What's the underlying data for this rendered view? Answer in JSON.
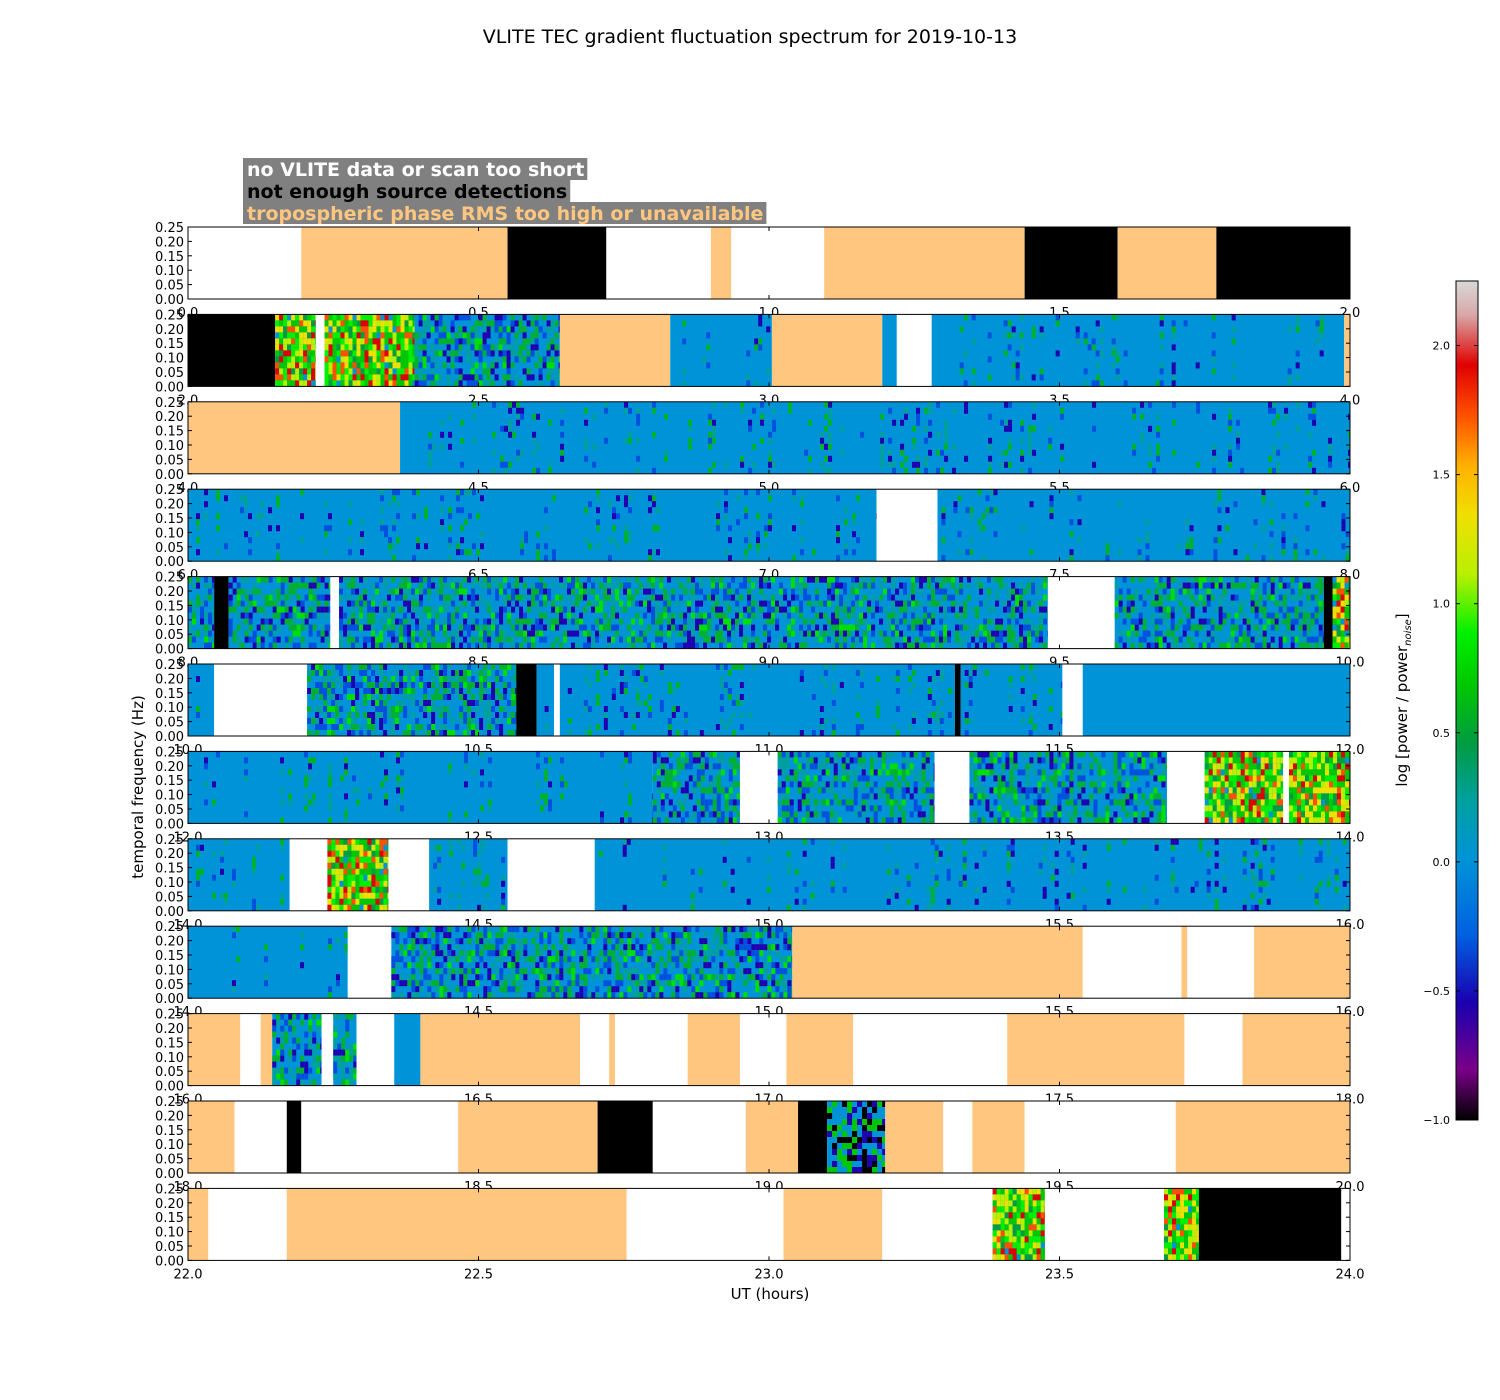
{
  "chart_data": {
    "type": "heatmap",
    "title": "VLITE TEC gradient fluctuation spectrum for 2019-10-13",
    "xlabel": "UT (hours)",
    "ylabel": "temporal frequency (Hz)",
    "colorbar_label": "log [power / power",
    "colorbar_label_sub": "noise",
    "colorbar_label_end": "]",
    "colorbar_range": [
      -1.0,
      2.25
    ],
    "colorbar_ticks": [
      "2.0",
      "1.5",
      "1.0",
      "0.5",
      "0.0",
      "−0.5",
      "−1.0"
    ],
    "colorbar_tick_values": [
      2.0,
      1.5,
      1.0,
      0.5,
      0.0,
      -0.5,
      -1.0
    ],
    "y_ticks": [
      "0.00",
      "0.05",
      "0.10",
      "0.15",
      "0.20",
      "0.25"
    ],
    "ylim": [
      0,
      0.25
    ],
    "legend": [
      {
        "label": "no VLITE data or scan too short",
        "text_color": "#ffffff",
        "status": "no_data"
      },
      {
        "label": "not enough source detections",
        "text_color": "#000000",
        "status": "no_detections"
      },
      {
        "label": "tropospheric phase RMS too high or unavailable",
        "text_color": "#ffc680",
        "status": "tropo"
      }
    ],
    "status_colors": {
      "no_data": "#ffffff",
      "no_detections": "#000000",
      "tropo": "#ffc680",
      "legend_box": "#808080",
      "noise_level": "#0093d8"
    },
    "panels": [
      {
        "x_ticks": [
          "0.0",
          "0.5",
          "1.0",
          "1.5",
          "2.0"
        ],
        "xlim": [
          0,
          2
        ],
        "segments": [
          [
            0,
            0.195,
            "no_data"
          ],
          [
            0.195,
            0.55,
            "tropo"
          ],
          [
            0.55,
            0.72,
            "no_detections"
          ],
          [
            0.72,
            0.9,
            "no_data"
          ],
          [
            0.9,
            0.935,
            "tropo"
          ],
          [
            0.935,
            1.095,
            "no_data"
          ],
          [
            1.095,
            1.44,
            "tropo"
          ],
          [
            1.44,
            1.6,
            "no_detections"
          ],
          [
            1.6,
            1.77,
            "tropo"
          ],
          [
            1.77,
            2.0,
            "no_detections"
          ]
        ]
      },
      {
        "x_ticks": [
          "2.0",
          "2.5",
          "3.0",
          "3.5",
          "4.0"
        ],
        "xlim": [
          2,
          4
        ],
        "segments": [
          [
            2.0,
            2.15,
            "no_detections"
          ],
          [
            2.15,
            2.22,
            "strong"
          ],
          [
            2.22,
            2.235,
            "no_data"
          ],
          [
            2.235,
            2.39,
            "strong"
          ],
          [
            2.39,
            2.64,
            "moderate"
          ],
          [
            2.64,
            2.83,
            "tropo"
          ],
          [
            2.83,
            3.005,
            "sparse"
          ],
          [
            3.005,
            3.195,
            "tropo"
          ],
          [
            3.195,
            3.22,
            "quiet"
          ],
          [
            3.22,
            3.28,
            "no_data"
          ],
          [
            3.28,
            3.99,
            "sparse"
          ],
          [
            3.99,
            4.0,
            "tropo"
          ]
        ]
      },
      {
        "x_ticks": [
          "4.0",
          "4.5",
          "5.0",
          "5.5",
          "6.0"
        ],
        "xlim": [
          4,
          6
        ],
        "segments": [
          [
            4.0,
            4.365,
            "tropo"
          ],
          [
            4.365,
            6.0,
            "sparse"
          ]
        ]
      },
      {
        "x_ticks": [
          "6.0",
          "6.5",
          "7.0",
          "7.5",
          "8.0"
        ],
        "xlim": [
          6,
          8
        ],
        "segments": [
          [
            6.0,
            7.185,
            "sparse"
          ],
          [
            7.185,
            7.29,
            "no_data"
          ],
          [
            7.29,
            8.0,
            "sparse"
          ]
        ]
      },
      {
        "x_ticks": [
          "8.0",
          "8.5",
          "9.0",
          "9.5",
          "10.0"
        ],
        "xlim": [
          8,
          10
        ],
        "segments": [
          [
            8.0,
            8.045,
            "moderate"
          ],
          [
            8.045,
            8.07,
            "no_detections"
          ],
          [
            8.07,
            8.245,
            "moderate"
          ],
          [
            8.245,
            8.26,
            "no_data"
          ],
          [
            8.26,
            9.48,
            "moderate"
          ],
          [
            9.48,
            9.595,
            "no_data"
          ],
          [
            9.595,
            9.955,
            "moderate"
          ],
          [
            9.955,
            9.97,
            "no_detections"
          ],
          [
            9.97,
            10.0,
            "strong"
          ]
        ]
      },
      {
        "x_ticks": [
          "10.0",
          "10.5",
          "11.0",
          "11.5",
          "12.0"
        ],
        "xlim": [
          10,
          12
        ],
        "segments": [
          [
            10.0,
            10.045,
            "sparse"
          ],
          [
            10.045,
            10.205,
            "no_data"
          ],
          [
            10.205,
            10.565,
            "moderate"
          ],
          [
            10.565,
            10.6,
            "no_detections"
          ],
          [
            10.6,
            10.63,
            "sparse"
          ],
          [
            10.63,
            10.64,
            "no_data"
          ],
          [
            10.64,
            11.32,
            "sparse"
          ],
          [
            11.32,
            11.33,
            "no_detections"
          ],
          [
            11.33,
            11.505,
            "sparse"
          ],
          [
            11.505,
            11.54,
            "no_data"
          ],
          [
            11.54,
            12.0,
            "quiet"
          ]
        ]
      },
      {
        "x_ticks": [
          "12.0",
          "12.5",
          "13.0",
          "13.5",
          "14.0"
        ],
        "xlim": [
          12,
          14
        ],
        "segments": [
          [
            12.0,
            12.8,
            "sparse"
          ],
          [
            12.8,
            12.95,
            "moderate"
          ],
          [
            12.95,
            13.015,
            "no_data"
          ],
          [
            13.015,
            13.285,
            "moderate"
          ],
          [
            13.285,
            13.345,
            "no_data"
          ],
          [
            13.345,
            13.685,
            "moderate"
          ],
          [
            13.685,
            13.75,
            "no_data"
          ],
          [
            13.75,
            13.885,
            "strong"
          ],
          [
            13.885,
            13.895,
            "no_data"
          ],
          [
            13.895,
            14.0,
            "strong"
          ]
        ]
      },
      {
        "x_ticks": [
          "14.0",
          "14.5",
          "15.0",
          "15.5",
          "16.0"
        ],
        "xlim": [
          14,
          16
        ],
        "segments": [
          [
            14.0,
            14.175,
            "sparse"
          ],
          [
            14.175,
            14.24,
            "no_data"
          ],
          [
            14.24,
            14.345,
            "strong"
          ],
          [
            14.345,
            14.415,
            "no_data"
          ],
          [
            14.415,
            14.55,
            "sparse"
          ],
          [
            14.55,
            14.7,
            "no_data"
          ],
          [
            14.7,
            16.0,
            "sparse"
          ]
        ]
      },
      {
        "x_ticks": [
          "14.0",
          "14.5",
          "15.0",
          "15.5",
          "16.0"
        ],
        "xlim": [
          14,
          16
        ],
        "segments": [
          [
            14.0,
            14.275,
            "sparse"
          ],
          [
            14.275,
            14.35,
            "no_data"
          ],
          [
            14.35,
            15.04,
            "moderate"
          ],
          [
            15.04,
            15.54,
            "tropo"
          ],
          [
            15.54,
            15.71,
            "no_data"
          ],
          [
            15.71,
            15.72,
            "tropo"
          ],
          [
            15.72,
            15.835,
            "no_data"
          ],
          [
            15.835,
            16.0,
            "tropo"
          ]
        ]
      },
      {
        "x_ticks": [
          "16.0",
          "16.5",
          "17.0",
          "17.5",
          "18.0"
        ],
        "xlim": [
          16,
          18
        ],
        "segments": [
          [
            16.0,
            16.09,
            "tropo"
          ],
          [
            16.09,
            16.125,
            "no_data"
          ],
          [
            16.125,
            16.145,
            "tropo"
          ],
          [
            16.145,
            16.23,
            "moderate"
          ],
          [
            16.23,
            16.25,
            "no_data"
          ],
          [
            16.25,
            16.29,
            "moderate"
          ],
          [
            16.29,
            16.355,
            "no_data"
          ],
          [
            16.355,
            16.4,
            "sparse"
          ],
          [
            16.4,
            16.675,
            "tropo"
          ],
          [
            16.675,
            16.725,
            "no_data"
          ],
          [
            16.725,
            16.735,
            "tropo"
          ],
          [
            16.735,
            16.86,
            "no_data"
          ],
          [
            16.86,
            16.95,
            "tropo"
          ],
          [
            16.95,
            17.03,
            "no_data"
          ],
          [
            17.03,
            17.145,
            "tropo"
          ],
          [
            17.145,
            17.41,
            "no_data"
          ],
          [
            17.41,
            17.715,
            "tropo"
          ],
          [
            17.715,
            17.815,
            "no_data"
          ],
          [
            17.815,
            18.0,
            "tropo"
          ]
        ]
      },
      {
        "x_ticks": [
          "18.0",
          "18.5",
          "19.0",
          "19.5",
          "20.0"
        ],
        "xlim": [
          18,
          20
        ],
        "segments": [
          [
            18.0,
            18.08,
            "tropo"
          ],
          [
            18.08,
            18.17,
            "no_data"
          ],
          [
            18.17,
            18.195,
            "no_detections"
          ],
          [
            18.195,
            18.465,
            "no_data"
          ],
          [
            18.465,
            18.705,
            "tropo"
          ],
          [
            18.705,
            18.8,
            "no_detections"
          ],
          [
            18.8,
            18.96,
            "no_data"
          ],
          [
            18.96,
            19.05,
            "tropo"
          ],
          [
            19.05,
            19.1,
            "no_detections"
          ],
          [
            19.1,
            19.2,
            "stripes"
          ],
          [
            19.2,
            19.3,
            "tropo"
          ],
          [
            19.3,
            19.35,
            "no_data"
          ],
          [
            19.35,
            19.44,
            "tropo"
          ],
          [
            19.44,
            19.7,
            "no_data"
          ],
          [
            19.7,
            20.0,
            "tropo"
          ]
        ]
      },
      {
        "x_ticks": [
          "22.0",
          "22.5",
          "23.0",
          "23.5",
          "24.0"
        ],
        "xlim": [
          22,
          24
        ],
        "segments": [
          [
            22.0,
            22.035,
            "tropo"
          ],
          [
            22.035,
            22.17,
            "no_data"
          ],
          [
            22.17,
            22.755,
            "tropo"
          ],
          [
            22.755,
            23.025,
            "no_data"
          ],
          [
            23.025,
            23.195,
            "tropo"
          ],
          [
            23.195,
            23.385,
            "no_data"
          ],
          [
            23.385,
            23.475,
            "strong"
          ],
          [
            23.475,
            23.68,
            "no_data"
          ],
          [
            23.68,
            23.74,
            "strong"
          ],
          [
            23.74,
            23.985,
            "no_detections"
          ],
          [
            23.985,
            24.0,
            "no_data"
          ]
        ]
      }
    ]
  }
}
